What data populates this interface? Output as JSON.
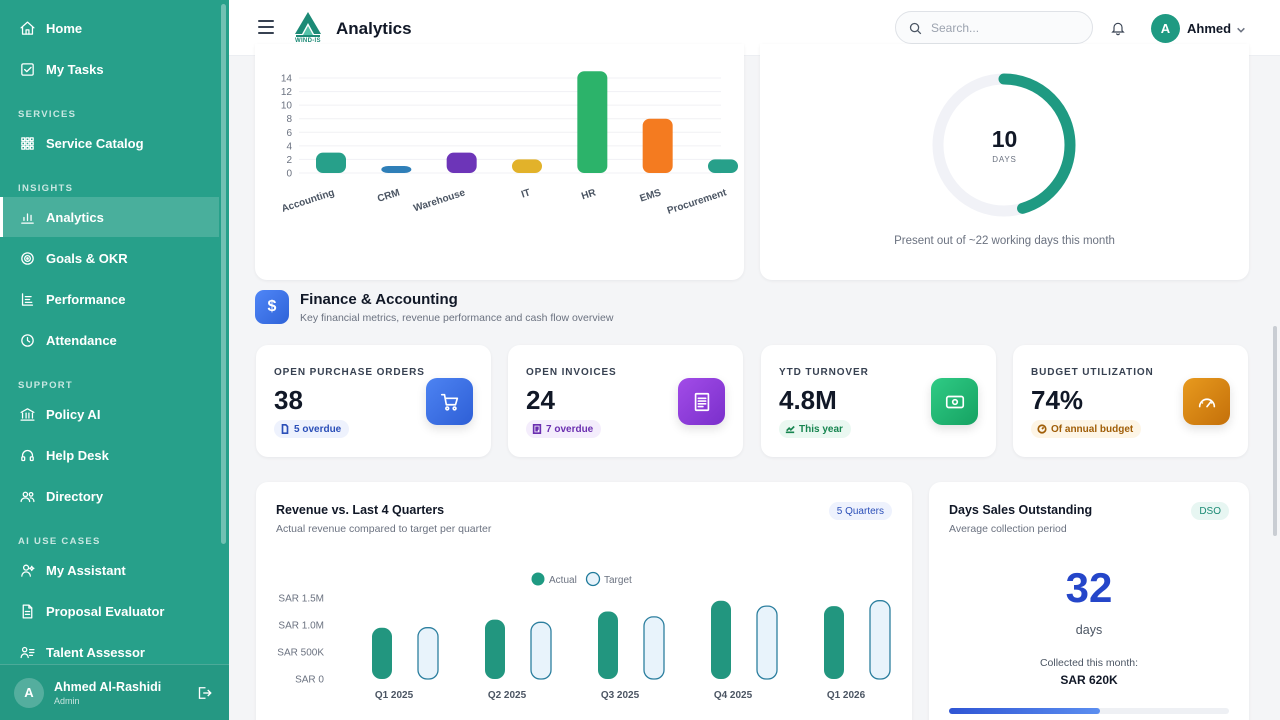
{
  "sidebar": {
    "items": [
      {
        "label": "Home",
        "icon": "home-icon"
      },
      {
        "label": "My Tasks",
        "icon": "tasks-icon"
      },
      {
        "label": "Service Catalog",
        "icon": "grid-icon"
      },
      {
        "label": "Analytics",
        "icon": "bar-chart-icon",
        "active": true
      },
      {
        "label": "Goals & OKR",
        "icon": "target-icon"
      },
      {
        "label": "Performance",
        "icon": "performance-icon"
      },
      {
        "label": "Attendance",
        "icon": "clock-icon"
      },
      {
        "label": "Policy AI",
        "icon": "bank-icon"
      },
      {
        "label": "Help Desk",
        "icon": "headset-icon"
      },
      {
        "label": "Directory",
        "icon": "users-icon"
      },
      {
        "label": "My Assistant",
        "icon": "assistant-icon"
      },
      {
        "label": "Proposal Evaluator",
        "icon": "document-icon"
      },
      {
        "label": "Talent Assessor",
        "icon": "talent-icon"
      }
    ],
    "sections": {
      "services": "SERVICES",
      "insights": "INSIGHTS",
      "support": "SUPPORT",
      "ai_use_cases": "AI USE CASES"
    },
    "user": {
      "initial": "A",
      "name": "Ahmed Al-Rashidi",
      "role": "Admin"
    }
  },
  "header": {
    "title": "Analytics",
    "logo_text": "WIND-IS",
    "search_placeholder": "Search...",
    "user_initial": "A",
    "user_name": "Ahmed"
  },
  "dept_chart": {
    "chart_data": {
      "type": "bar",
      "categories": [
        "Accounting",
        "CRM",
        "Warehouse",
        "IT",
        "HR",
        "EMS",
        "Procurement"
      ],
      "values": [
        3,
        1,
        3,
        2,
        15,
        8,
        2
      ],
      "colors": [
        "#27a08a",
        "#2f7fb8",
        "#6d35b8",
        "#e2b22a",
        "#2cb36a",
        "#f47b20",
        "#27a08a"
      ],
      "yticks": [
        "14",
        "12",
        "10",
        "8",
        "6",
        "4",
        "2",
        "0"
      ],
      "ylim": [
        0,
        14
      ]
    }
  },
  "attendance": {
    "value": "10",
    "unit": "DAYS",
    "caption": "Present out of ~22 working days this month",
    "fraction": 0.4545
  },
  "finance": {
    "icon_symbol": "$",
    "title": "Finance & Accounting",
    "subtitle": "Key financial metrics, revenue performance and cash flow overview"
  },
  "kpis": [
    {
      "label": "OPEN PURCHASE ORDERS",
      "value": "38",
      "badge": "5 overdue",
      "accent": "#3f6fe0"
    },
    {
      "label": "OPEN INVOICES",
      "value": "24",
      "badge": "7 overdue",
      "accent": "#8a3fd6"
    },
    {
      "label": "YTD TURNOVER",
      "value": "4.8M",
      "badge": "This year",
      "accent": "#20a86e"
    },
    {
      "label": "BUDGET UTILIZATION",
      "value": "74%",
      "badge": "Of annual budget",
      "accent": "#d8860e"
    }
  ],
  "revenue": {
    "title": "Revenue vs. Last 4 Quarters",
    "subtitle": "Actual revenue compared to target per quarter",
    "badge": "5 Quarters",
    "chart_data": {
      "type": "bar",
      "categories": [
        "Q1 2025",
        "Q2 2025",
        "Q3 2025",
        "Q4 2025",
        "Q1 2026"
      ],
      "series": [
        {
          "name": "Actual",
          "values": [
            950000,
            1100000,
            1250000,
            1450000,
            1350000
          ]
        },
        {
          "name": "Target",
          "values": [
            950000,
            1050000,
            1150000,
            1350000,
            1450000
          ]
        }
      ],
      "yticks": [
        "SAR 1.5M",
        "SAR 1.0M",
        "SAR 500K",
        "SAR 0"
      ],
      "ylim": [
        0,
        1500000
      ],
      "legend": "top-center"
    }
  },
  "dso": {
    "title": "Days Sales Outstanding",
    "badge": "DSO",
    "subtitle": "Average collection period",
    "value": "32",
    "unit": "days",
    "caption": "Collected this month:",
    "amount": "SAR 620K",
    "progress": 0.54
  }
}
